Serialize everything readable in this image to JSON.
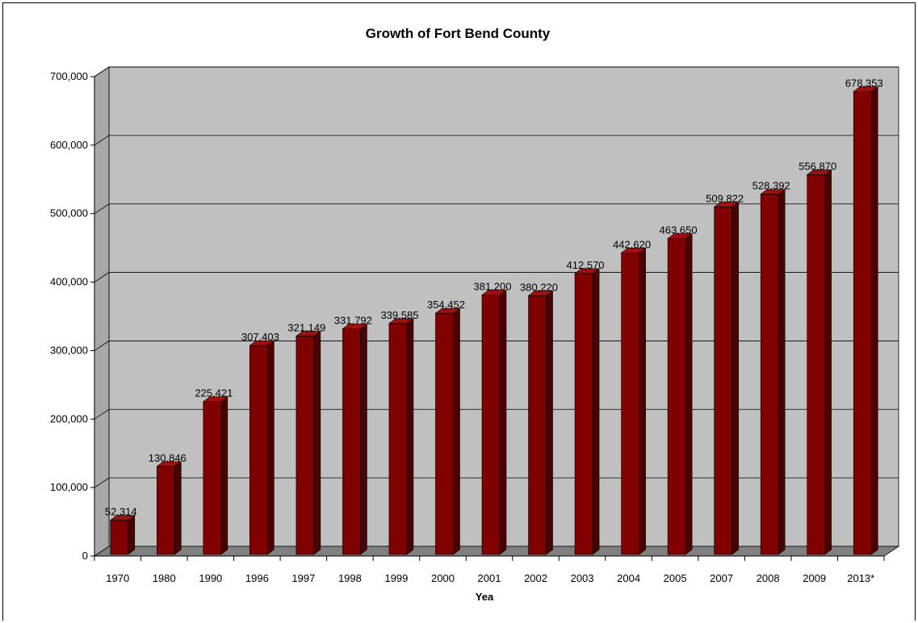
{
  "chart_data": {
    "type": "bar",
    "title": "Growth of Fort Bend County",
    "xlabel": "Yea",
    "ylabel": "",
    "ylim": [
      0,
      700000
    ],
    "y_ticks": [
      "0",
      "100,000",
      "200,000",
      "300,000",
      "400,000",
      "500,000",
      "600,000",
      "700,000"
    ],
    "y_tick_values": [
      0,
      100000,
      200000,
      300000,
      400000,
      500000,
      600000,
      700000
    ],
    "categories": [
      "1970",
      "1980",
      "1990",
      "1996",
      "1997",
      "1998",
      "1999",
      "2000",
      "2001",
      "2002",
      "2003",
      "2004",
      "2005",
      "2007",
      "2008",
      "2009",
      "2013*"
    ],
    "values": [
      52314,
      130846,
      225421,
      307403,
      321149,
      331792,
      339585,
      354452,
      381200,
      380220,
      412570,
      442620,
      463650,
      509822,
      528392,
      556870,
      678353
    ],
    "data_labels": [
      "52,314",
      "130,846",
      "225,421",
      "307,403",
      "321,149",
      "331,792",
      "339,585",
      "354,452",
      "381,200",
      "380,220",
      "412,570",
      "442,620",
      "463,650",
      "509,822",
      "528,392",
      "556,870",
      "678,353"
    ],
    "grid": true,
    "legend": "none",
    "style": "3d-column",
    "colors": {
      "bar_front": "#800000",
      "bar_side": "#4a0000",
      "bar_top": "#a01010",
      "wall": "#c0c0c0",
      "floor": "#808080",
      "gridline": "#000000"
    }
  }
}
